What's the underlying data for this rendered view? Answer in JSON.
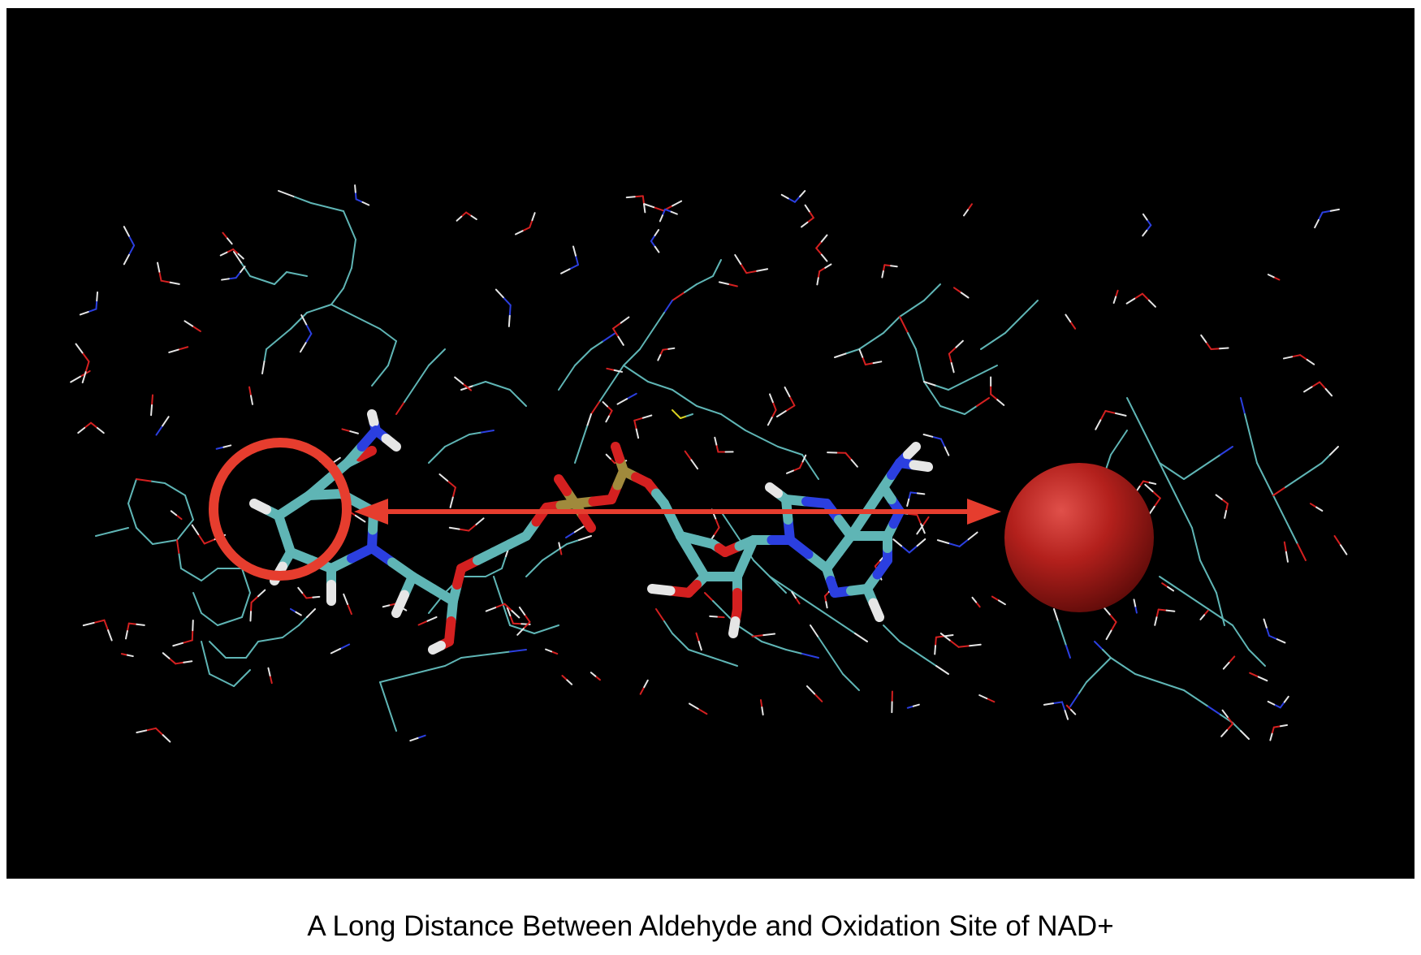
{
  "caption": "A Long Distance Between Aldehyde and Oxidation Site of NAD+",
  "colors": {
    "background": "#000000",
    "carbon": "#5fb5b5",
    "oxygen": "#d42020",
    "nitrogen": "#2b3fe0",
    "hydrogen": "#e6e6e6",
    "phosphorus": "#a08a3c",
    "sulfur": "#d8d020",
    "annotation": "#e63d2e"
  },
  "annotations": [
    {
      "kind": "circle-highlight",
      "meaning": "aldehyde-site"
    },
    {
      "kind": "double-arrow",
      "meaning": "long-distance"
    }
  ]
}
